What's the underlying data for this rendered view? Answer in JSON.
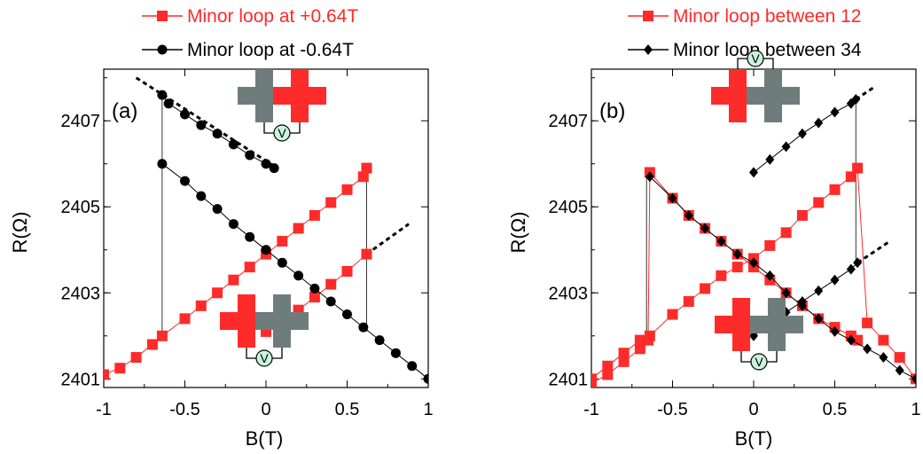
{
  "chart_data": [
    {
      "type": "scatter",
      "panel_label": "(a)",
      "xlabel": "B(T)",
      "ylabel": "R(Ω)",
      "xlim": [
        -1,
        1
      ],
      "ylim": [
        2400.8,
        2408.2
      ],
      "xticks": [
        "-1",
        "-0.5",
        "0",
        "0.5",
        "1"
      ],
      "yticks": [
        "2401",
        "2403",
        "2405",
        "2407"
      ],
      "legend": {
        "placement": "top",
        "entries": [
          {
            "label": "Minor loop at +0.64T",
            "color": "#ff2a2a",
            "marker": "square"
          },
          {
            "label": "Minor loop at -0.64T",
            "color": "#000000",
            "marker": "circle"
          }
        ]
      },
      "series": [
        {
          "name": "Minor loop at +0.64T",
          "color": "#ff2a2a",
          "marker": "square",
          "x": [
            -1.0,
            -0.9,
            -0.8,
            -0.7,
            -0.64,
            -0.5,
            -0.4,
            -0.3,
            -0.2,
            -0.1,
            0.0,
            0.1,
            0.2,
            0.3,
            0.4,
            0.5,
            0.6,
            0.62
          ],
          "y": [
            2401.1,
            2401.25,
            2401.5,
            2401.8,
            2402.0,
            2402.4,
            2402.7,
            2403.0,
            2403.3,
            2403.6,
            2403.9,
            2404.2,
            2404.5,
            2404.8,
            2405.1,
            2405.4,
            2405.7,
            2405.9
          ]
        },
        {
          "name": "Minor loop at +0.64T",
          "color": "#ff2a2a",
          "marker": "square",
          "x": [
            0.62,
            0.5,
            0.4,
            0.3,
            0.2,
            0.1,
            0.0
          ],
          "y": [
            2403.9,
            2403.5,
            2403.2,
            2402.9,
            2402.6,
            2402.35,
            2402.1
          ]
        },
        {
          "name": "Minor loop at -0.64T",
          "color": "#000000",
          "marker": "circle",
          "x": [
            -0.64,
            -0.6,
            -0.5,
            -0.4,
            -0.3,
            -0.2,
            -0.1,
            0.0,
            0.05
          ],
          "y": [
            2407.6,
            2407.4,
            2407.15,
            2406.9,
            2406.7,
            2406.45,
            2406.2,
            2406.0,
            2405.9
          ]
        },
        {
          "name": "Minor loop at -0.64T",
          "color": "#000000",
          "marker": "circle",
          "x": [
            -0.64,
            -0.5,
            -0.4,
            -0.3,
            -0.2,
            -0.1,
            0.0,
            0.1,
            0.2,
            0.3,
            0.4,
            0.5,
            0.6,
            0.7,
            0.8,
            0.9,
            1.0
          ],
          "y": [
            2406.0,
            2405.6,
            2405.25,
            2404.95,
            2404.6,
            2404.3,
            2404.0,
            2403.7,
            2403.4,
            2403.1,
            2402.8,
            2402.5,
            2402.2,
            2401.9,
            2401.6,
            2401.3,
            2401.0
          ]
        }
      ],
      "dashed_lines": [
        {
          "x": [
            -0.8,
            0.07
          ],
          "y": [
            2408.0,
            2405.9
          ]
        },
        {
          "x": [
            0.62,
            0.88
          ],
          "y": [
            2403.9,
            2404.6
          ]
        }
      ],
      "vertical_jumps": [
        {
          "x": -0.64,
          "y": [
            2402.0,
            2407.6
          ]
        },
        {
          "x": 0.62,
          "y": [
            2402.1,
            2405.9
          ]
        }
      ],
      "insets": [
        {
          "position": "top",
          "left_color": "#6e7c7c",
          "right_color": "#ff2a2a",
          "voltmeter": "V",
          "voltmeter_side": "below"
        },
        {
          "position": "bottom",
          "left_color": "#ff2a2a",
          "right_color": "#6e7c7c",
          "voltmeter": "V",
          "voltmeter_side": "below"
        }
      ]
    },
    {
      "type": "scatter",
      "panel_label": "(b)",
      "xlabel": "B(T)",
      "ylabel": "R(Ω)",
      "xlim": [
        -1,
        1
      ],
      "ylim": [
        2400.8,
        2408.2
      ],
      "xticks": [
        "-1",
        "-0.5",
        "0",
        "0.5",
        "1"
      ],
      "yticks": [
        "2401",
        "2403",
        "2405",
        "2407"
      ],
      "legend": {
        "placement": "top",
        "entries": [
          {
            "label": "Minor loop between 12",
            "color": "#ff2a2a",
            "marker": "square"
          },
          {
            "label": "Minor loop between 34",
            "color": "#000000",
            "marker": "diamond"
          }
        ]
      },
      "series": [
        {
          "name": "Minor loop between 12",
          "color": "#ff2a2a",
          "marker": "square",
          "x": [
            -1.0,
            -0.9,
            -0.8,
            -0.7,
            -0.65,
            -0.64,
            -0.5,
            -0.4,
            -0.3,
            -0.2,
            -0.1,
            0.0,
            0.1,
            0.2,
            0.3,
            0.4,
            0.5,
            0.6,
            0.64
          ],
          "y": [
            2400.9,
            2401.1,
            2401.4,
            2401.7,
            2401.9,
            2405.8,
            2405.2,
            2404.8,
            2404.5,
            2404.2,
            2403.9,
            2403.6,
            2403.3,
            2403.0,
            2402.7,
            2402.4,
            2402.2,
            2402.0,
            2401.9
          ]
        },
        {
          "name": "Minor loop between 12",
          "color": "#ff2a2a",
          "marker": "square",
          "x": [
            -1.0,
            -0.9,
            -0.8,
            -0.7,
            -0.64,
            -0.5,
            -0.4,
            -0.3,
            -0.2,
            -0.1,
            0.0,
            0.1,
            0.2,
            0.3,
            0.4,
            0.5,
            0.6,
            0.64,
            0.7,
            0.8,
            0.9,
            1.0
          ],
          "y": [
            2401.0,
            2401.3,
            2401.6,
            2401.9,
            2402.0,
            2402.5,
            2402.8,
            2403.1,
            2403.4,
            2403.6,
            2403.8,
            2404.1,
            2404.4,
            2404.8,
            2405.1,
            2405.4,
            2405.7,
            2405.9,
            2402.3,
            2401.9,
            2401.5,
            2401.0
          ]
        },
        {
          "name": "Minor loop between 34",
          "color": "#000000",
          "marker": "diamond",
          "x": [
            -0.64,
            -0.5,
            -0.4,
            -0.3,
            -0.2,
            -0.1,
            0.0,
            0.1,
            0.2,
            0.3,
            0.4,
            0.5,
            0.6,
            0.7,
            0.8,
            0.9,
            1.0
          ],
          "y": [
            2405.7,
            2405.2,
            2404.8,
            2404.5,
            2404.2,
            2403.9,
            2403.7,
            2403.4,
            2403.0,
            2402.7,
            2402.4,
            2402.1,
            2401.9,
            2401.7,
            2401.5,
            2401.2,
            2401.0
          ]
        },
        {
          "name": "Minor loop between 34",
          "color": "#000000",
          "marker": "diamond",
          "x": [
            0.0,
            0.1,
            0.2,
            0.3,
            0.4,
            0.5,
            0.6,
            0.63
          ],
          "y": [
            2405.8,
            2406.1,
            2406.4,
            2406.7,
            2406.95,
            2407.2,
            2407.4,
            2407.5
          ]
        },
        {
          "name": "Minor loop between 34",
          "color": "#000000",
          "marker": "diamond",
          "x": [
            0.0,
            0.1,
            0.2,
            0.3,
            0.4,
            0.5,
            0.6,
            0.64
          ],
          "y": [
            2402.0,
            2402.3,
            2402.55,
            2402.8,
            2403.05,
            2403.3,
            2403.55,
            2403.7
          ]
        }
      ],
      "dashed_lines": [
        {
          "x": [
            0.63,
            0.75
          ],
          "y": [
            2407.5,
            2407.8
          ]
        },
        {
          "x": [
            0.64,
            0.84
          ],
          "y": [
            2403.7,
            2404.2
          ]
        }
      ],
      "vertical_jumps": [
        {
          "x": -0.66,
          "y": [
            2401.9,
            2405.7
          ]
        },
        {
          "x": 0.63,
          "y": [
            2403.7,
            2407.5
          ]
        }
      ],
      "insets": [
        {
          "position": "top",
          "left_color": "#ff2a2a",
          "right_color": "#6e7c7c",
          "voltmeter": "V",
          "voltmeter_side": "above"
        },
        {
          "position": "bottom",
          "left_color": "#ff2a2a",
          "right_color": "#6e7c7c",
          "voltmeter": "V",
          "voltmeter_side": "below"
        }
      ]
    }
  ]
}
